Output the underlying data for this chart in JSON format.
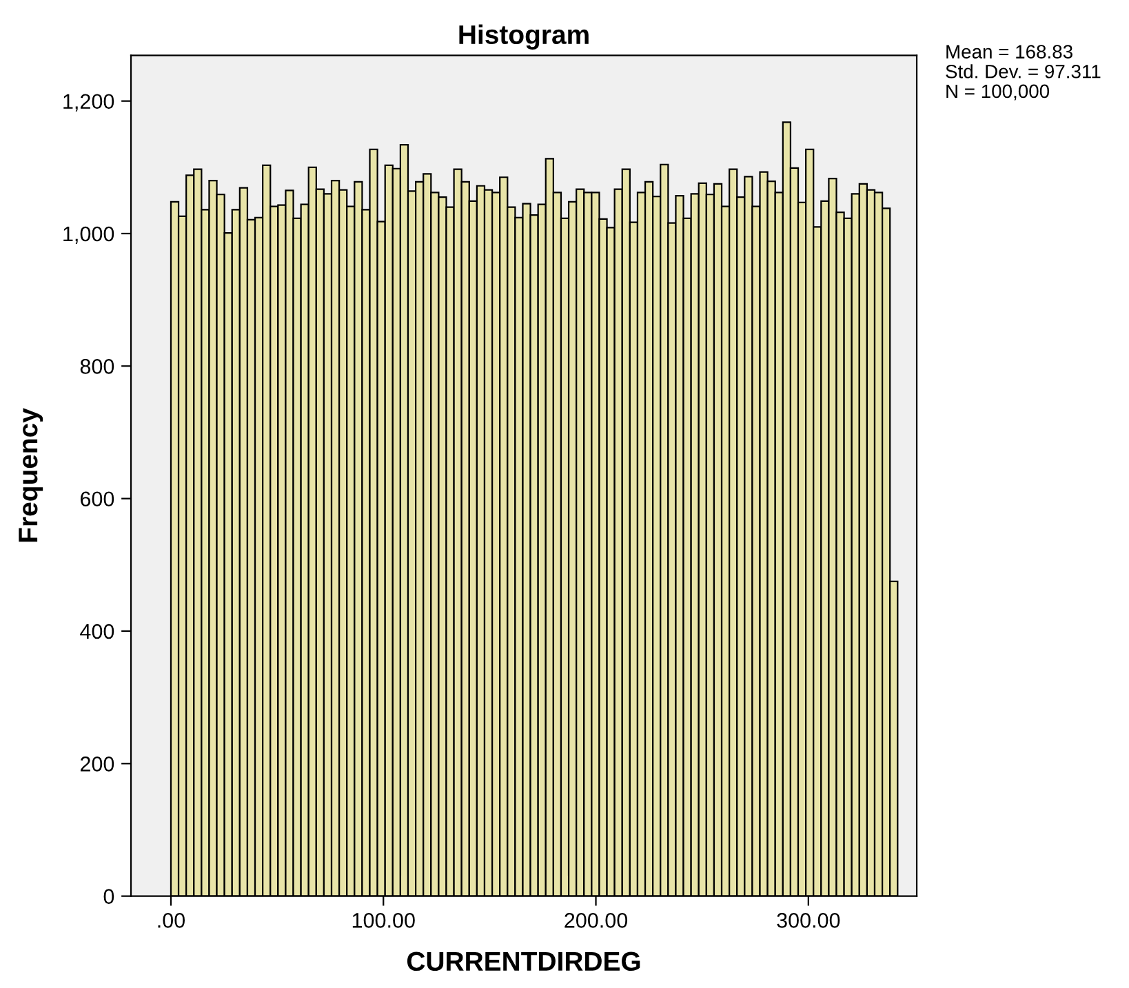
{
  "chart_data": {
    "type": "histogram",
    "title": "Histogram",
    "xlabel": "CURRENTDIRDEG",
    "ylabel": "Frequency",
    "annotations": [
      "Mean = 168.83",
      "Std. Dev. = 97.311",
      "N = 100,000"
    ],
    "bins": [
      0,
      3.6,
      7.2,
      10.8,
      14.4,
      18,
      21.6,
      25.2,
      28.8,
      32.4,
      36,
      39.6,
      43.2,
      46.8,
      50.4,
      54,
      57.6,
      61.2,
      64.8,
      68.4,
      72,
      75.6,
      79.2,
      82.8,
      86.4,
      90,
      93.6,
      97.2,
      100.8,
      104.4,
      108,
      111.6,
      115.2,
      118.8,
      122.4,
      126,
      129.6,
      133.2,
      136.8,
      140.4,
      144,
      147.6,
      151.2,
      154.8,
      158.4,
      162,
      165.6,
      169.2,
      172.8,
      176.4,
      180,
      183.6,
      187.2,
      190.8,
      194.4,
      198,
      201.6,
      205.2,
      208.8,
      212.4,
      216,
      219.6,
      223.2,
      226.8,
      230.4,
      234,
      237.6,
      241.2,
      244.8,
      248.4,
      252,
      255.6,
      259.2,
      262.8,
      266.4,
      270,
      273.6,
      277.2,
      280.8,
      284.4,
      288,
      291.6,
      295.2,
      298.8,
      302.4,
      306,
      309.6,
      313.2,
      316.8,
      320.4,
      324,
      327.6,
      331.2,
      334.8,
      338.4,
      342
    ],
    "values": [
      1048,
      1026,
      1088,
      1097,
      1036,
      1080,
      1059,
      1001,
      1036,
      1069,
      1021,
      1024,
      1103,
      1041,
      1043,
      1065,
      1023,
      1044,
      1100,
      1067,
      1060,
      1080,
      1066,
      1041,
      1078,
      1036,
      1127,
      1018,
      1103,
      1098,
      1134,
      1064,
      1078,
      1090,
      1062,
      1055,
      1040,
      1097,
      1078,
      1049,
      1072,
      1066,
      1062,
      1085,
      1040,
      1024,
      1045,
      1028,
      1044,
      1113,
      1062,
      1023,
      1048,
      1067,
      1062,
      1062,
      1022,
      1009,
      1067,
      1097,
      1017,
      1062,
      1078,
      1056,
      1104,
      1016,
      1057,
      1023,
      1060,
      1076,
      1059,
      1075,
      1041,
      1097,
      1055,
      1086,
      1041,
      1093,
      1079,
      1062,
      1168,
      1099,
      1047,
      1127,
      1010,
      1049,
      1083,
      1032,
      1023,
      1060,
      1075,
      1066,
      1062,
      1038,
      475
    ],
    "color": "#e8e4a8",
    "xlim": [
      -18.8,
      351
    ],
    "ylim": [
      0,
      1269
    ],
    "xticks": [
      {
        "value": 0,
        "label": ".00"
      },
      {
        "value": 100,
        "label": "100.00"
      },
      {
        "value": 200,
        "label": "200.00"
      },
      {
        "value": 300,
        "label": "300.00"
      }
    ],
    "yticks": [
      0,
      200,
      400,
      600,
      800,
      {
        "value": 1000,
        "label": "1,000"
      },
      {
        "value": 1200,
        "label": "1,200"
      }
    ],
    "grid": false,
    "legend": false
  }
}
